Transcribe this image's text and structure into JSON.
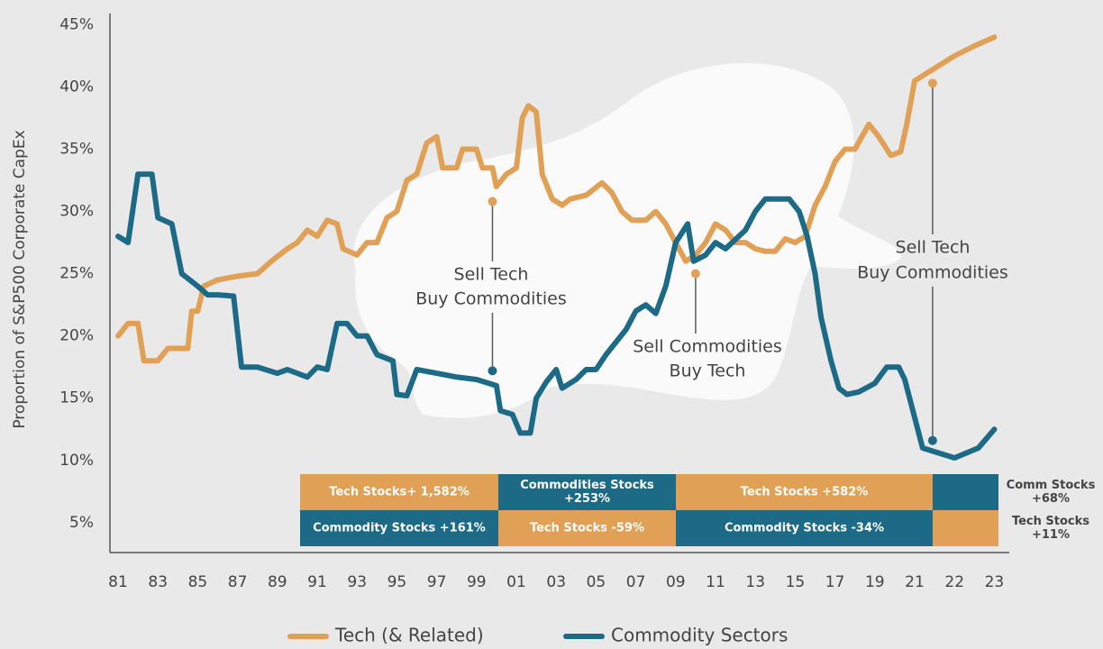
{
  "chart_data": {
    "type": "line",
    "y_label": "Proportion of S&P500 Corporate CapEx",
    "xlim": [
      1980.6,
      2023.34
    ],
    "xticks": [
      {
        "value": 1981,
        "label": "81"
      },
      {
        "value": 1983,
        "label": "83"
      },
      {
        "value": 1985,
        "label": "85"
      },
      {
        "value": 1987,
        "label": "87"
      },
      {
        "value": 1989,
        "label": "89"
      },
      {
        "value": 1991,
        "label": "91"
      },
      {
        "value": 1993,
        "label": "93"
      },
      {
        "value": 1995,
        "label": "95"
      },
      {
        "value": 1997,
        "label": "97"
      },
      {
        "value": 1999,
        "label": "99"
      },
      {
        "value": 2001,
        "label": "01"
      },
      {
        "value": 2003,
        "label": "03"
      },
      {
        "value": 2005,
        "label": "05"
      },
      {
        "value": 2007,
        "label": "07"
      },
      {
        "value": 2009,
        "label": "09"
      },
      {
        "value": 2011,
        "label": "11"
      },
      {
        "value": 2013,
        "label": "13"
      },
      {
        "value": 2015,
        "label": "15"
      },
      {
        "value": 2017,
        "label": "17"
      },
      {
        "value": 2019,
        "label": "19"
      },
      {
        "value": 2021,
        "label": "21"
      },
      {
        "value": 2022,
        "label": "22"
      },
      {
        "value": 2023,
        "label": "23"
      }
    ],
    "ylim": [
      2.6,
      45.9
    ],
    "yticks": [
      {
        "value": 5,
        "label": "5%"
      },
      {
        "value": 10,
        "label": "10%"
      },
      {
        "value": 15,
        "label": "15%"
      },
      {
        "value": 20,
        "label": "20%"
      },
      {
        "value": 25,
        "label": "25%"
      },
      {
        "value": 30,
        "label": "30%"
      },
      {
        "value": 35,
        "label": "35%"
      },
      {
        "value": 40,
        "label": "40%"
      },
      {
        "value": 45,
        "label": "45%"
      }
    ],
    "grid": false,
    "legend": "bottom",
    "series": [
      {
        "name": "Tech (& Related)",
        "color": "#e0a157",
        "x": [
          1981,
          1981.5,
          1982,
          1982.3,
          1983,
          1983.5,
          1984,
          1984.5,
          1984.7,
          1985,
          1985.3,
          1986,
          1987,
          1988,
          1988.7,
          1989.5,
          1990,
          1990.5,
          1991,
          1991.5,
          1992,
          1992.3,
          1993,
          1993.5,
          1994,
          1994.5,
          1995,
          1995.5,
          1996,
          1996.5,
          1997,
          1997.3,
          1998,
          1998.3,
          1999,
          1999.3,
          1999.8,
          2000,
          2000.5,
          2001,
          2001.3,
          2001.6,
          2002,
          2002.3,
          2002.8,
          2003.3,
          2003.7,
          2004.5,
          2005.3,
          2005.8,
          2006.3,
          2006.8,
          2007.5,
          2008,
          2008.5,
          2009,
          2009.5,
          2010,
          2010.5,
          2011,
          2011.5,
          2012,
          2012.5,
          2013,
          2013.5,
          2014,
          2014.5,
          2015,
          2015.5,
          2016,
          2016.5,
          2017,
          2017.5,
          2018,
          2018.7,
          2019.2,
          2019.8,
          2020.3,
          2020.6,
          2021,
          2021.5,
          2022,
          2022.5,
          2023
        ],
        "values": [
          20,
          21,
          21,
          18,
          18,
          19,
          19,
          19,
          22,
          22,
          24,
          24.5,
          24.8,
          25,
          26,
          27,
          27.5,
          28.5,
          28,
          29.3,
          29,
          27,
          26.5,
          27.5,
          27.5,
          29.5,
          30,
          32.5,
          33,
          35.5,
          36,
          33.5,
          33.5,
          35,
          35,
          33.5,
          33.5,
          32,
          33,
          33.5,
          37.5,
          38.5,
          38,
          33,
          31,
          30.5,
          31,
          31.3,
          32.3,
          31.5,
          30,
          29.3,
          29.3,
          30,
          29,
          27.5,
          26,
          26.5,
          27.5,
          29,
          28.5,
          27.5,
          27.5,
          27,
          26.8,
          26.8,
          27.8,
          27.5,
          28,
          30.5,
          32,
          34,
          35,
          35,
          37,
          36,
          34.5,
          34.8,
          37,
          40.5,
          41.5,
          42.5,
          43.3,
          44
        ]
      },
      {
        "name": "Commodity Sectors",
        "color": "#1d6a86",
        "x": [
          1981,
          1981.5,
          1982,
          1982.7,
          1983,
          1983.7,
          1984.2,
          1985,
          1985.5,
          1986,
          1986.8,
          1987.2,
          1988,
          1989,
          1989.5,
          1990.5,
          1991,
          1991.5,
          1992,
          1992.5,
          1993,
          1993.5,
          1994,
          1994.8,
          1995,
          1995.5,
          1996,
          1997,
          1998,
          1999,
          2000,
          2000.2,
          2000.8,
          2001.2,
          2001.7,
          2002,
          2002.5,
          2003,
          2003.3,
          2004,
          2004.5,
          2005,
          2005.5,
          2006.5,
          2007,
          2007.5,
          2008,
          2008.5,
          2009,
          2009.6,
          2009.9,
          2010.5,
          2011,
          2011.5,
          2012.5,
          2013,
          2013.5,
          2014.7,
          2015.2,
          2015.6,
          2016,
          2016.3,
          2016.8,
          2017.2,
          2017.6,
          2018.2,
          2019,
          2019.6,
          2020.2,
          2020.5,
          2021.2,
          2021.6,
          2022,
          2022.6,
          2023
        ],
        "values": [
          28,
          27.5,
          33,
          33,
          29.5,
          29,
          25,
          24,
          23.3,
          23.3,
          23.2,
          17.5,
          17.5,
          17,
          17.3,
          16.7,
          17.5,
          17.3,
          21,
          21,
          20,
          20,
          18.5,
          18,
          15.3,
          15.2,
          17.3,
          17,
          16.7,
          16.5,
          16,
          14,
          13.7,
          12.2,
          12.2,
          15,
          16.3,
          17.3,
          15.8,
          16.5,
          17.3,
          17.3,
          18.5,
          20.5,
          22,
          22.5,
          21.8,
          24,
          27.5,
          29,
          26,
          26.5,
          27.5,
          27,
          28.5,
          30,
          31,
          31,
          30,
          28,
          25,
          21.5,
          18,
          15.8,
          15.3,
          15.5,
          16.2,
          17.5,
          17.5,
          16.5,
          11,
          10.6,
          10.2,
          11,
          12.5
        ]
      }
    ],
    "annotations": [
      {
        "lines": [
          "Sell Tech",
          "Buy Commodities"
        ],
        "x": 1999.8,
        "y_top": 30.8,
        "y_bottom": 17.2
      },
      {
        "lines": [
          "Sell Commodities",
          "Buy Tech"
        ],
        "x": 2010,
        "y_top": 25
      },
      {
        "lines": [
          "Sell Tech",
          "Buy Commodities"
        ],
        "x": 2021.45,
        "y_top": 40.3,
        "y_bottom": 11.6
      }
    ],
    "periods": {
      "rows": [
        [
          {
            "text": [
              "Tech Stocks+ 1,582%"
            ],
            "color": "#e0a157"
          },
          {
            "text": [
              "Commodities Stocks",
              "+253%"
            ],
            "color": "#1d6a86"
          },
          {
            "text": [
              "Tech Stocks +582%"
            ],
            "color": "#e0a157"
          },
          {
            "color": "#1d6a86"
          }
        ],
        [
          {
            "text": [
              "Commodity Stocks +161%"
            ],
            "color": "#1d6a86"
          },
          {
            "text": [
              "Tech Stocks -59%"
            ],
            "color": "#e0a157"
          },
          {
            "text": [
              "Commodity Stocks -34%"
            ],
            "color": "#1d6a86"
          },
          {
            "color": "#e0a157"
          }
        ]
      ],
      "notes": [
        [
          "Comm Stocks",
          "+68%"
        ],
        [
          "Tech Stocks",
          "+11%"
        ]
      ]
    }
  }
}
